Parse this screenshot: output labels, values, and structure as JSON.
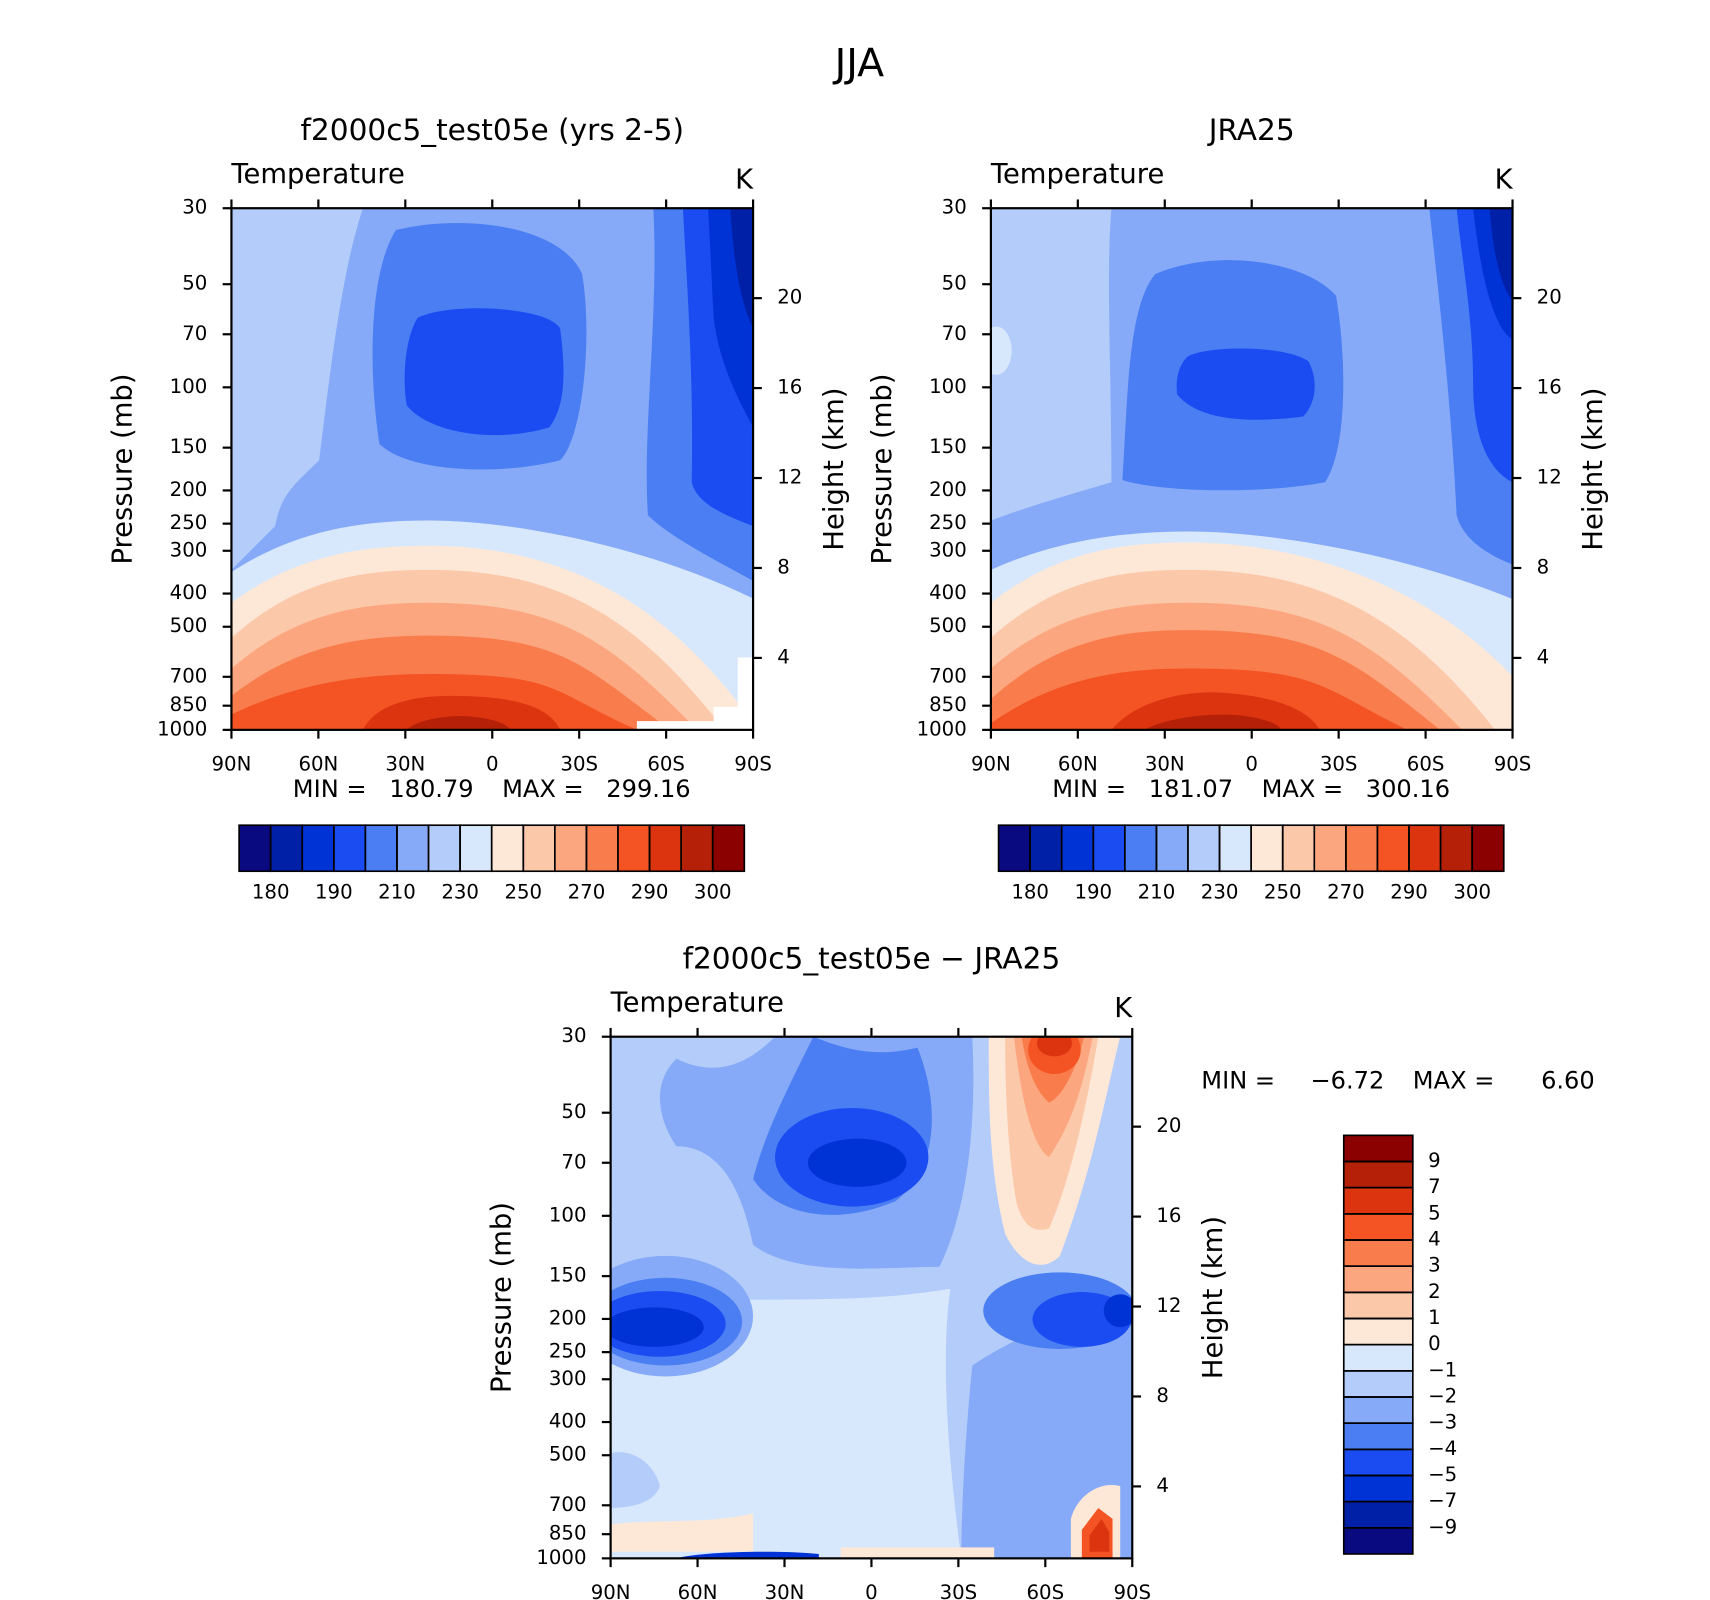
{
  "title": "JJA",
  "chart_data": [
    {
      "type": "contour",
      "title": "f2000c5_test05e (yrs 2-5)",
      "subtitle": "Temperature",
      "units": "K",
      "ylabel": "Pressure (mb)",
      "y2label": "Height (km)",
      "xlim": [
        90,
        -90
      ],
      "xticks": [
        {
          "value": 90,
          "label": "90N"
        },
        {
          "value": 60,
          "label": "60N"
        },
        {
          "value": 30,
          "label": "30N"
        },
        0,
        {
          "value": -30,
          "label": "30S"
        },
        {
          "value": -60,
          "label": "60S"
        },
        {
          "value": -90,
          "label": "90S"
        }
      ],
      "ylim": [
        1000,
        30
      ],
      "log_y": true,
      "yticks": [
        30,
        50,
        70,
        100,
        150,
        200,
        250,
        300,
        400,
        500,
        700,
        850,
        1000
      ],
      "y2lim": [
        0.8,
        24
      ],
      "y2ticks": [
        4,
        8,
        12,
        16,
        20
      ],
      "min_label": "MIN =",
      "min": 180.79,
      "max_label": "MAX =",
      "max": 299.16,
      "colorbar": {
        "orientation": "horizontal",
        "colors": [
          "#0a0a80",
          "#0020a8",
          "#0033d6",
          "#1a4cf2",
          "#4a7ef2",
          "#86aaf7",
          "#b3ccfa",
          "#d8e8fc",
          "#fde8d8",
          "#fcc8aa",
          "#fba67e",
          "#f97c4c",
          "#f45424",
          "#dd3410",
          "#b52008",
          "#8b0000"
        ],
        "levels": [
          180,
          190,
          210,
          230,
          250,
          270,
          290,
          300
        ]
      }
    },
    {
      "type": "contour",
      "title": "JRA25",
      "subtitle": "Temperature",
      "units": "K",
      "ylabel": "Pressure (mb)",
      "y2label": "Height (km)",
      "xlim": [
        90,
        -90
      ],
      "xticks": [
        {
          "value": 90,
          "label": "90N"
        },
        {
          "value": 60,
          "label": "60N"
        },
        {
          "value": 30,
          "label": "30N"
        },
        0,
        {
          "value": -30,
          "label": "30S"
        },
        {
          "value": -60,
          "label": "60S"
        },
        {
          "value": -90,
          "label": "90S"
        }
      ],
      "ylim": [
        1000,
        30
      ],
      "log_y": true,
      "yticks": [
        30,
        50,
        70,
        100,
        150,
        200,
        250,
        300,
        400,
        500,
        700,
        850,
        1000
      ],
      "y2lim": [
        0.8,
        24
      ],
      "y2ticks": [
        4,
        8,
        12,
        16,
        20
      ],
      "min_label": "MIN =",
      "min": 181.07,
      "max_label": "MAX =",
      "max": 300.16,
      "colorbar": {
        "orientation": "horizontal",
        "colors": [
          "#0a0a80",
          "#0020a8",
          "#0033d6",
          "#1a4cf2",
          "#4a7ef2",
          "#86aaf7",
          "#b3ccfa",
          "#d8e8fc",
          "#fde8d8",
          "#fcc8aa",
          "#fba67e",
          "#f97c4c",
          "#f45424",
          "#dd3410",
          "#b52008",
          "#8b0000"
        ],
        "levels": [
          180,
          190,
          210,
          230,
          250,
          270,
          290,
          300
        ]
      }
    },
    {
      "type": "contour",
      "title": "f2000c5_test05e − JRA25",
      "subtitle": "Temperature",
      "units": "K",
      "ylabel": "Pressure (mb)",
      "y2label": "Height (km)",
      "xlim": [
        90,
        -90
      ],
      "xticks": [
        {
          "value": 90,
          "label": "90N"
        },
        {
          "value": 60,
          "label": "60N"
        },
        {
          "value": 30,
          "label": "30N"
        },
        0,
        {
          "value": -30,
          "label": "30S"
        },
        {
          "value": -60,
          "label": "60S"
        },
        {
          "value": -90,
          "label": "90S"
        }
      ],
      "ylim": [
        1000,
        30
      ],
      "log_y": true,
      "yticks": [
        30,
        50,
        70,
        100,
        150,
        200,
        250,
        300,
        400,
        500,
        700,
        850,
        1000
      ],
      "y2lim": [
        0.8,
        24
      ],
      "y2ticks": [
        4,
        8,
        12,
        16,
        20
      ],
      "min_label": "MIN =",
      "min": {
        "value": -6.72,
        "label": "−6.72"
      },
      "max_label": "MAX =",
      "max": {
        "value": 6.6,
        "label": "6.60"
      },
      "colorbar": {
        "orientation": "vertical",
        "colors": [
          "#0a0a80",
          "#0020a8",
          "#0033d6",
          "#1a4cf2",
          "#4a7ef2",
          "#86aaf7",
          "#b3ccfa",
          "#d8e8fc",
          "#fde8d8",
          "#fcc8aa",
          "#fba67e",
          "#f97c4c",
          "#f45424",
          "#dd3410",
          "#b52008",
          "#8b0000"
        ],
        "levels": [
          {
            "value": -9,
            "label": "−9"
          },
          {
            "value": -7,
            "label": "−7"
          },
          {
            "value": -5,
            "label": "−5"
          },
          {
            "value": -4,
            "label": "−4"
          },
          {
            "value": -3,
            "label": "−3"
          },
          {
            "value": -2,
            "label": "−2"
          },
          {
            "value": -1,
            "label": "−1"
          },
          0,
          1,
          2,
          3,
          4,
          5,
          7,
          9
        ]
      }
    }
  ]
}
